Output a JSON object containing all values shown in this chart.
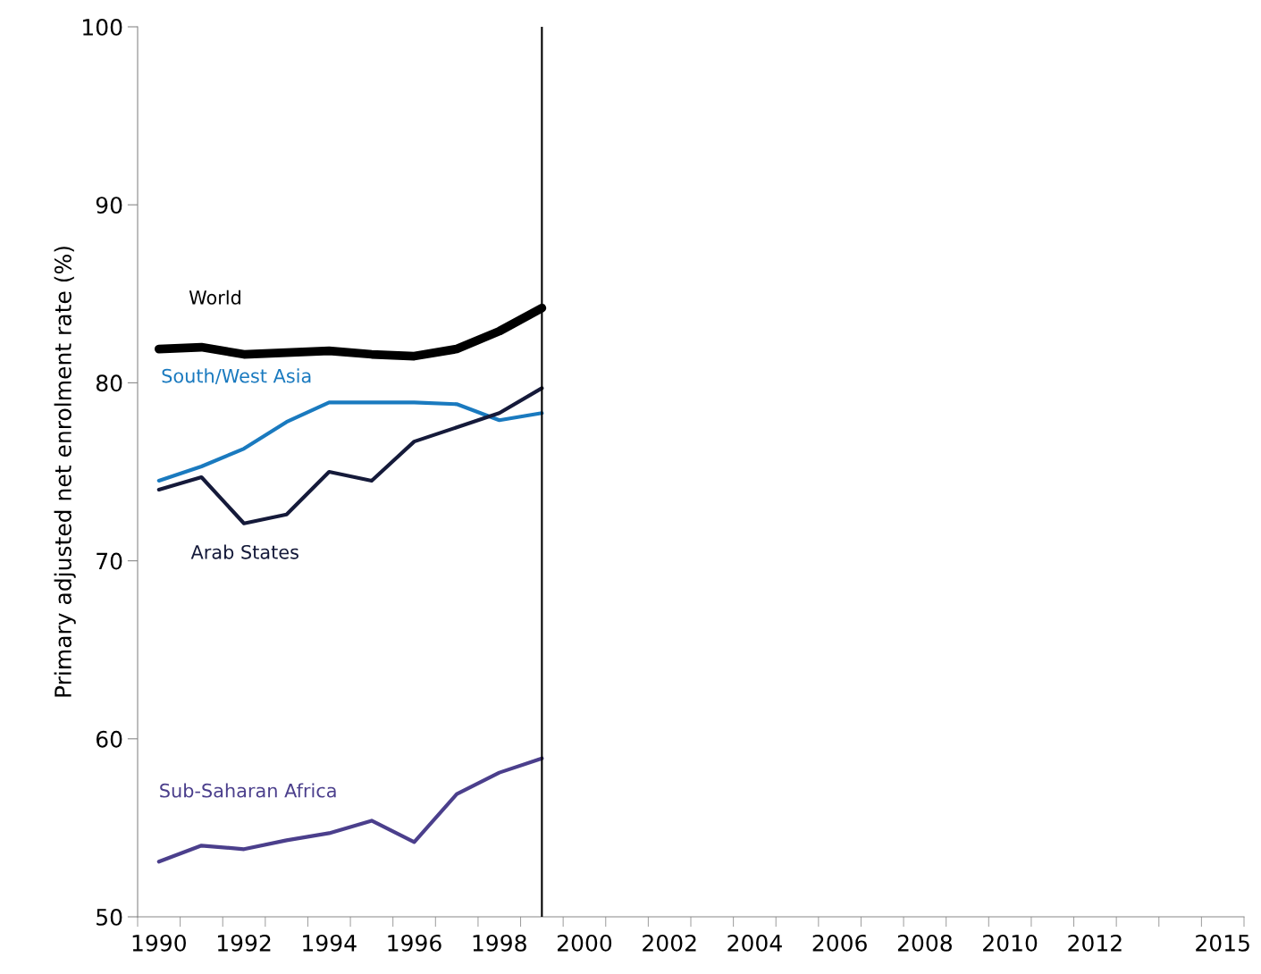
{
  "chart_data": {
    "type": "line",
    "ylabel": "Primary adjusted net enrolment rate (%)",
    "x": [
      1990,
      1991,
      1992,
      1993,
      1994,
      1995,
      1996,
      1997,
      1998,
      1999
    ],
    "series": [
      {
        "name": "World",
        "color": "#000000",
        "values": [
          81.9,
          82.0,
          81.6,
          81.7,
          81.8,
          81.6,
          81.5,
          81.9,
          82.9,
          84.2
        ]
      },
      {
        "name": "South/West Asia",
        "color": "#1a7abf",
        "values": [
          74.5,
          75.3,
          76.3,
          77.8,
          78.9,
          78.9,
          78.9,
          78.8,
          77.9,
          78.3
        ]
      },
      {
        "name": "Arab States",
        "color": "#151a3a",
        "values": [
          74.0,
          74.7,
          72.1,
          72.6,
          75.0,
          74.5,
          76.7,
          77.5,
          78.3,
          79.7
        ]
      },
      {
        "name": "Sub-Saharan Africa",
        "color": "#4b3f8c",
        "values": [
          53.1,
          54.0,
          53.8,
          54.3,
          54.7,
          55.4,
          54.2,
          56.9,
          58.1,
          58.9
        ]
      }
    ],
    "xlim": [
      1989.5,
      2015.5
    ],
    "xticks": [
      1990,
      1992,
      1994,
      1996,
      1998,
      2000,
      2002,
      2004,
      2006,
      2008,
      2010,
      2012,
      2015,
      {
        "value": 1989.5,
        "label": null
      },
      {
        "value": 1990.5,
        "label": null
      },
      {
        "value": 1991.5,
        "label": null
      },
      {
        "value": 1992.5,
        "label": null
      },
      {
        "value": 1993.5,
        "label": null
      },
      {
        "value": 1994.5,
        "label": null
      },
      {
        "value": 1995.5,
        "label": null
      },
      {
        "value": 1996.5,
        "label": null
      },
      {
        "value": 1997.5,
        "label": null
      },
      {
        "value": 1998.5,
        "label": null
      },
      {
        "value": 1999.5,
        "label": null
      },
      {
        "value": 2000.5,
        "label": null
      },
      {
        "value": 2001.5,
        "label": null
      },
      {
        "value": 2002.5,
        "label": null
      },
      {
        "value": 2003.5,
        "label": null
      },
      {
        "value": 2004.5,
        "label": null
      },
      {
        "value": 2005.5,
        "label": null
      },
      {
        "value": 2006.5,
        "label": null
      },
      {
        "value": 2007.5,
        "label": null
      },
      {
        "value": 2008.5,
        "label": null
      },
      {
        "value": 2009.5,
        "label": null
      },
      {
        "value": 2010.5,
        "label": null
      },
      {
        "value": 2011.5,
        "label": null
      },
      {
        "value": 2012.5,
        "label": null
      },
      {
        "value": 2013.5,
        "label": null
      },
      {
        "value": 2014.5,
        "label": null
      },
      {
        "value": 2015.5,
        "label": null
      }
    ],
    "ylim": [
      50,
      100
    ],
    "yticks": [
      50,
      60,
      70,
      80,
      90,
      100
    ],
    "ref_lines": [
      {
        "axis": "x",
        "value": 1999,
        "color": "#000000"
      }
    ],
    "grid": false,
    "legend": false,
    "marker": "none",
    "line_style": "solid"
  }
}
